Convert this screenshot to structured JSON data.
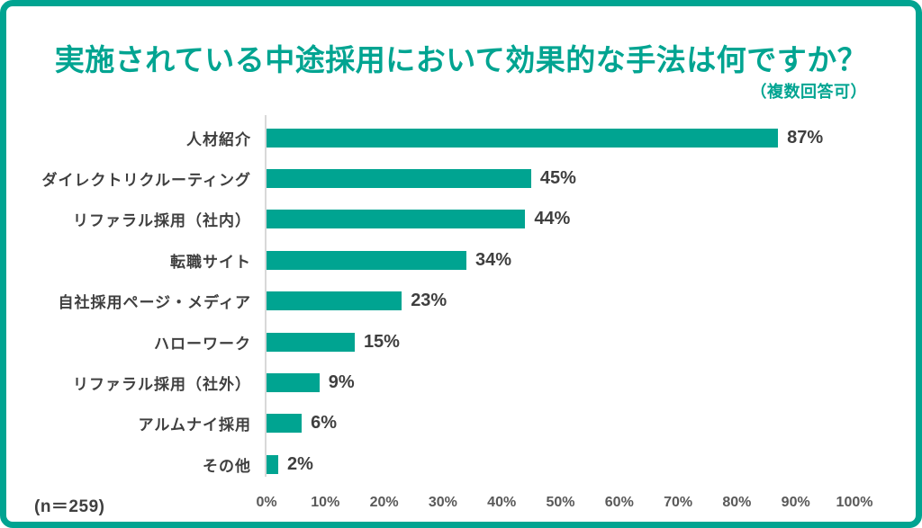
{
  "header": {
    "title": "実施されている中途採用において効果的な手法は何ですか？",
    "subtitle": "（複数回答可）"
  },
  "footer": {
    "sample_size": "(n＝259)"
  },
  "colors": {
    "accent": "#00A491",
    "bar_color": "#00A491",
    "label_text": "#3F3F3F",
    "axis_text": "#595959",
    "axis_line": "#D9D9D9",
    "background": "#FFFFFF"
  },
  "chart_data": {
    "type": "bar",
    "orientation": "horizontal",
    "title": "実施されている中途採用において効果的な手法は何ですか？",
    "subtitle": "（複数回答可）",
    "sample_note": "(n＝259)",
    "categories": [
      "人材紹介",
      "ダイレクトリクルーティング",
      "リファラル採用（社内）",
      "転職サイト",
      "自社採用ページ・メディア",
      "ハローワーク",
      "リファラル採用（社外）",
      "アルムナイ採用",
      "その他"
    ],
    "values": [
      87,
      45,
      44,
      34,
      23,
      15,
      9,
      6,
      2
    ],
    "value_labels": [
      "87%",
      "45%",
      "44%",
      "34%",
      "23%",
      "15%",
      "9%",
      "6%",
      "2%"
    ],
    "x_ticks": [
      "0%",
      "10%",
      "20%",
      "30%",
      "40%",
      "50%",
      "60%",
      "70%",
      "80%",
      "90%",
      "100%"
    ],
    "xlim": [
      0,
      100
    ],
    "grid": false,
    "legend": "none",
    "bar_color": "#00A491"
  }
}
